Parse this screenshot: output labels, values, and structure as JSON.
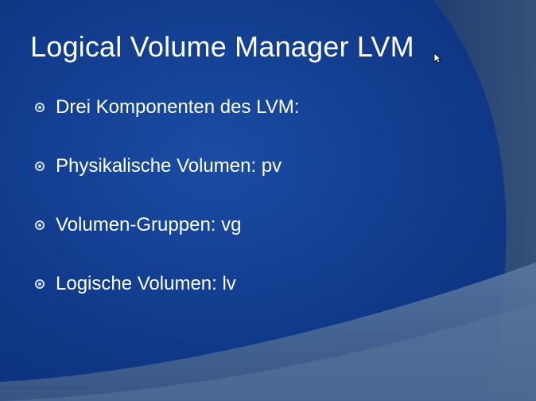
{
  "slide": {
    "title": "Logical Volume Manager LVM",
    "bullets": [
      {
        "text": "Drei Komponenten des LVM:"
      },
      {
        "text": "Physikalische Volumen: pv"
      },
      {
        "text": "Volumen-Gruppen: vg"
      },
      {
        "text": "Logische Volumen: lv"
      }
    ]
  },
  "colors": {
    "background": "#10398a",
    "accent_shape": "#2f4f77",
    "text": "#ffffff",
    "bullet_icon": "#cfe1ff"
  }
}
